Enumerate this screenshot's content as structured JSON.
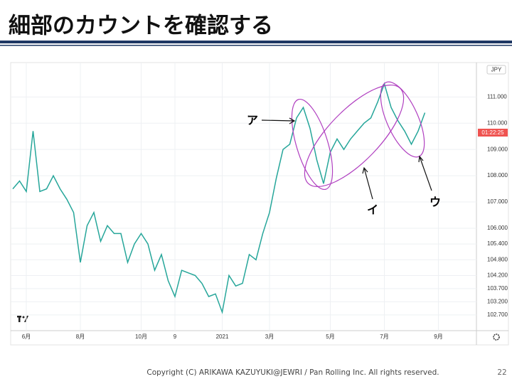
{
  "header": {
    "title": "細部のカウントを確認する"
  },
  "chart_data": {
    "type": "line",
    "currency": "JPY",
    "countdown": "01:22:25",
    "annotations": [
      "ア",
      "イ",
      "ウ"
    ],
    "categories": [
      null,
      null,
      "6月",
      null,
      null,
      null,
      null,
      null,
      null,
      null,
      "8月",
      null,
      null,
      null,
      null,
      null,
      null,
      null,
      null,
      "10月",
      null,
      null,
      null,
      null,
      "9",
      null,
      null,
      null,
      null,
      null,
      null,
      "2021",
      null,
      null,
      null,
      null,
      null,
      null,
      "3月",
      null,
      null,
      null,
      null,
      null,
      null,
      null,
      null,
      "5月",
      null,
      null,
      null,
      null,
      null,
      null,
      null,
      "7月",
      null,
      null,
      null,
      null,
      null,
      null,
      null,
      "9月"
    ],
    "values": [
      107.5,
      107.8,
      107.4,
      109.7,
      107.4,
      107.5,
      108.0,
      107.5,
      107.1,
      106.6,
      104.7,
      106.1,
      106.6,
      105.5,
      106.1,
      105.8,
      105.8,
      104.7,
      105.4,
      105.8,
      105.4,
      104.4,
      105.0,
      104.0,
      103.4,
      104.4,
      104.3,
      104.2,
      103.9,
      103.4,
      103.5,
      102.8,
      104.2,
      103.8,
      103.9,
      105.0,
      104.8,
      105.8,
      106.6,
      107.9,
      109.0,
      109.2,
      110.2,
      110.6,
      109.8,
      108.6,
      107.7,
      108.9,
      109.4,
      109.0,
      109.4,
      109.7,
      110.0,
      110.2,
      110.8,
      111.5,
      110.6,
      110.1,
      109.7,
      109.2,
      109.7,
      110.4,
      null,
      null
    ],
    "color": "#26a69a",
    "ylim": [
      102.1,
      112.2
    ],
    "yticks": [
      {
        "value": 111,
        "label": "111.000"
      },
      {
        "value": 110,
        "label": "110.000"
      },
      {
        "value": 109,
        "label": "109.000"
      },
      {
        "value": 108,
        "label": "108.000"
      },
      {
        "value": 107,
        "label": "107.000"
      },
      {
        "value": 106,
        "label": "106.000"
      },
      {
        "value": 105.4,
        "label": "105.400"
      },
      {
        "value": 104.8,
        "label": "104.800"
      },
      {
        "value": 104.2,
        "label": "104.200"
      },
      {
        "value": 103.7,
        "label": "103.700"
      },
      {
        "value": 103.2,
        "label": "103.200"
      },
      {
        "value": 102.7,
        "label": "102.700"
      }
    ],
    "grid": true
  },
  "footer": {
    "copyright": "Copyright (C) ARIKAWA KAZUYUKI@JEWRI / Pan Rolling Inc. All rights reserved.",
    "page": "22"
  }
}
